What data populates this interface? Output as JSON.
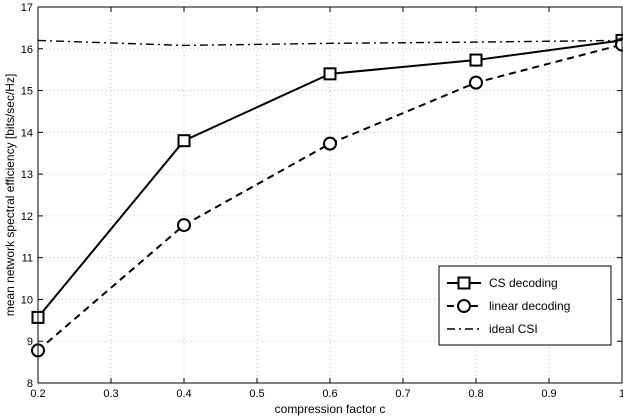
{
  "chart_data": {
    "type": "line",
    "title": "",
    "xlabel": "compression factor c",
    "ylabel": "mean network spectral efficiency [bits/sec/Hz]",
    "xlim": [
      0.2,
      1
    ],
    "ylim": [
      8,
      17
    ],
    "xticks": [
      "0.2",
      "0.3",
      "0.4",
      "0.5",
      "0.6",
      "0.7",
      "0.8",
      "0.9",
      "1"
    ],
    "yticks": [
      "8",
      "9",
      "10",
      "11",
      "12",
      "13",
      "14",
      "15",
      "16",
      "17"
    ],
    "grid": true,
    "legend_position": "lower-right",
    "series": [
      {
        "name": "CS decoding",
        "x": [
          0.2,
          0.4,
          0.6,
          0.8,
          1.0
        ],
        "y": [
          9.57,
          13.8,
          15.4,
          15.73,
          16.2
        ],
        "line": "solid",
        "marker": "square"
      },
      {
        "name": "linear decoding",
        "x": [
          0.2,
          0.4,
          0.6,
          0.8,
          1.0
        ],
        "y": [
          8.78,
          11.78,
          13.73,
          15.19,
          16.1
        ],
        "line": "dashed",
        "marker": "circle"
      },
      {
        "name": "ideal CSI",
        "x": [
          0.2,
          0.4,
          0.6,
          0.8,
          1.0
        ],
        "y": [
          16.2,
          16.08,
          16.13,
          16.16,
          16.2
        ],
        "line": "dashdot",
        "marker": "none"
      }
    ]
  }
}
